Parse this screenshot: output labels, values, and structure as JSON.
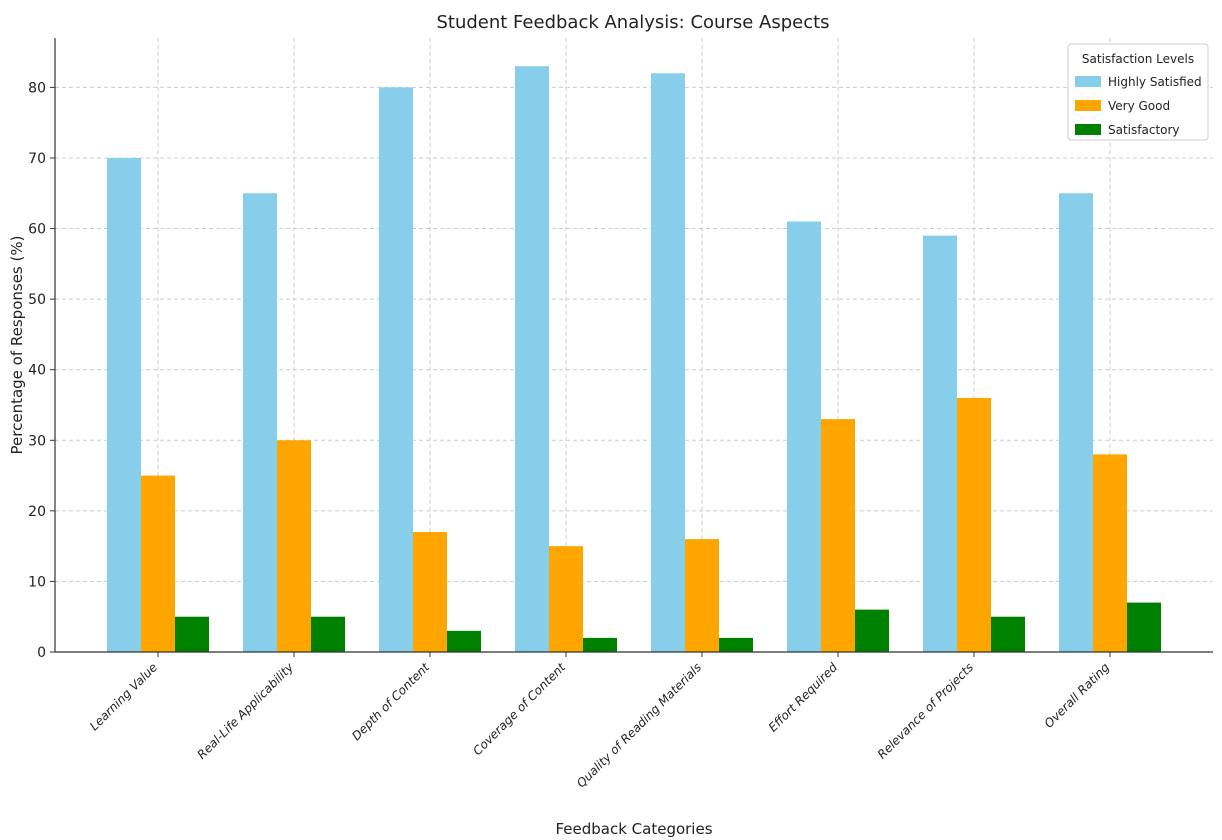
{
  "chart_data": {
    "type": "bar",
    "title": "Student Feedback Analysis: Course Aspects",
    "xlabel": "Feedback Categories",
    "ylabel": "Percentage of Responses (%)",
    "ylim": [
      0,
      87
    ],
    "yticks": [
      0,
      10,
      20,
      30,
      40,
      50,
      60,
      70,
      80
    ],
    "grid": true,
    "legend_position": "top-right",
    "legend_title": "Satisfaction Levels",
    "categories": [
      "Learning Value",
      "Real-Life Applicability",
      "Depth of Content",
      "Coverage of Content",
      "Quality of Reading Materials",
      "Effort Required",
      "Relevance of Projects",
      "Overall Rating"
    ],
    "series": [
      {
        "name": "Highly Satisfied",
        "color": "#87CEEB",
        "values": [
          70,
          65,
          80,
          83,
          82,
          61,
          59,
          65
        ]
      },
      {
        "name": "Very Good",
        "color": "#FFA500",
        "values": [
          25,
          30,
          17,
          15,
          16,
          33,
          36,
          28
        ]
      },
      {
        "name": "Satisfactory",
        "color": "#008000",
        "values": [
          5,
          5,
          3,
          2,
          2,
          6,
          5,
          7
        ]
      }
    ]
  }
}
